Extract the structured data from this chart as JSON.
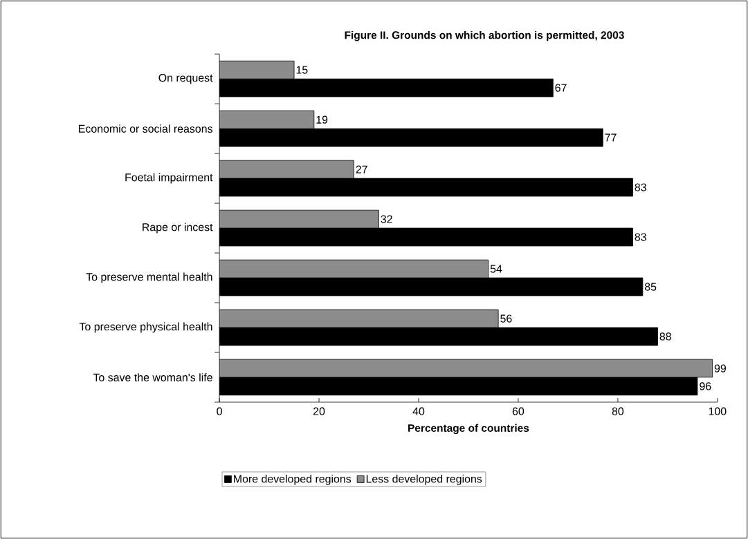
{
  "chart_data": {
    "type": "bar",
    "orientation": "horizontal",
    "title": "Figure II.  Grounds on which abortion is permitted, 2003",
    "xlabel": "Percentage of countries",
    "categories": [
      "On request",
      "Economic or social reasons",
      "Foetal impairment",
      "Rape or incest",
      "To preserve mental health",
      "To preserve physical health",
      "To save the woman's life"
    ],
    "series": [
      {
        "name": "More developed regions",
        "color": "#000000",
        "values": [
          67,
          77,
          83,
          83,
          85,
          88,
          96
        ]
      },
      {
        "name": "Less developed regions",
        "color": "#8c8c8c",
        "values": [
          15,
          19,
          27,
          32,
          54,
          56,
          99
        ]
      }
    ],
    "xlim": [
      0,
      100
    ],
    "xticks": [
      0,
      20,
      40,
      60,
      80,
      100
    ],
    "data_labels": true,
    "legend": "bottom",
    "grid": false
  }
}
